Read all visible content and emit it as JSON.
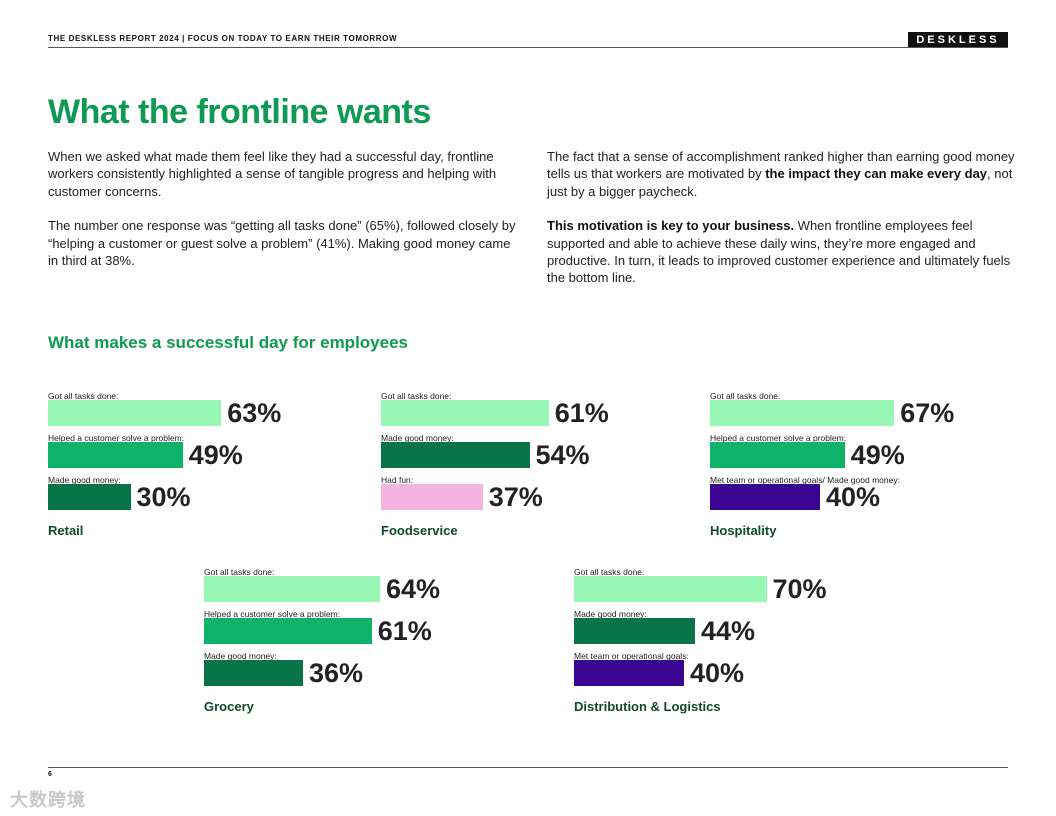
{
  "header": {
    "report_line": "THE DESKLESS REPORT 2024  |  FOCUS ON TODAY TO EARN THEIR TOMORROW",
    "brand": "DESKLESS"
  },
  "title": "What the frontline wants",
  "intro": {
    "left": [
      "When we asked what made them feel like they had a successful day, frontline workers consistently highlighted a sense of tangible progress and helping with customer concerns.",
      "The number one response was “getting all tasks done” (65%), followed closely by “helping a customer or guest solve a problem” (41%). Making good money came in third at 38%."
    ],
    "right_p1_a": "The fact that a sense of accomplishment ranked higher than earning good money tells us that workers are motivated by ",
    "right_p1_bold": "the impact they can make every day",
    "right_p1_b": ", not just by a bigger paycheck.",
    "right_p2_bold": "This motivation is key to your business.",
    "right_p2_rest": " When frontline employees feel supported and able to achieve these daily wins, they’re more engaged and productive. In turn, it leads to improved customer experience and ultimately fuels the bottom line."
  },
  "section_title": "What makes a successful day for employees",
  "colors": {
    "light_green": "#98f7b4",
    "mid_green": "#0eb369",
    "dark_green": "#067447",
    "pink": "#f2b6e0",
    "purple": "#3a0691",
    "title_green": "#0d9a52"
  },
  "chart_data": [
    {
      "type": "bar",
      "segment": "Retail",
      "categories": [
        "Got all tasks done:",
        "Helped a customer solve a problem:",
        "Made good money:"
      ],
      "values": [
        63,
        49,
        30
      ],
      "labels": [
        "63%",
        "49%",
        "30%"
      ],
      "colors": [
        "#98f7b4",
        "#0eb369",
        "#067447"
      ]
    },
    {
      "type": "bar",
      "segment": "Foodservice",
      "categories": [
        "Got all tasks done:",
        "Made good money:",
        "Had fun:"
      ],
      "values": [
        61,
        54,
        37
      ],
      "labels": [
        "61%",
        "54%",
        "37%"
      ],
      "colors": [
        "#98f7b4",
        "#067447",
        "#f2b6e0"
      ]
    },
    {
      "type": "bar",
      "segment": "Hospitality",
      "categories": [
        "Got all tasks done:",
        "Helped a customer solve a problem:",
        "Met team or operational goals/ Made good money:"
      ],
      "values": [
        67,
        49,
        40
      ],
      "labels": [
        "67%",
        "49%",
        "40%"
      ],
      "colors": [
        "#98f7b4",
        "#0eb369",
        "#3a0691"
      ]
    },
    {
      "type": "bar",
      "segment": "Grocery",
      "categories": [
        "Got all tasks done:",
        "Helped a customer solve a problem:",
        "Made good money:"
      ],
      "values": [
        64,
        61,
        36
      ],
      "labels": [
        "64%",
        "61%",
        "36%"
      ],
      "colors": [
        "#98f7b4",
        "#0eb369",
        "#067447"
      ]
    },
    {
      "type": "bar",
      "segment": "Distribution & Logistics",
      "categories": [
        "Got all tasks done:",
        "Made good money:",
        "Met team or operational goals:"
      ],
      "values": [
        70,
        44,
        40
      ],
      "labels": [
        "70%",
        "44%",
        "40%"
      ],
      "colors": [
        "#98f7b4",
        "#067447",
        "#3a0691"
      ]
    }
  ],
  "footer": {
    "page_number": "6"
  },
  "watermark": "大数跨境"
}
